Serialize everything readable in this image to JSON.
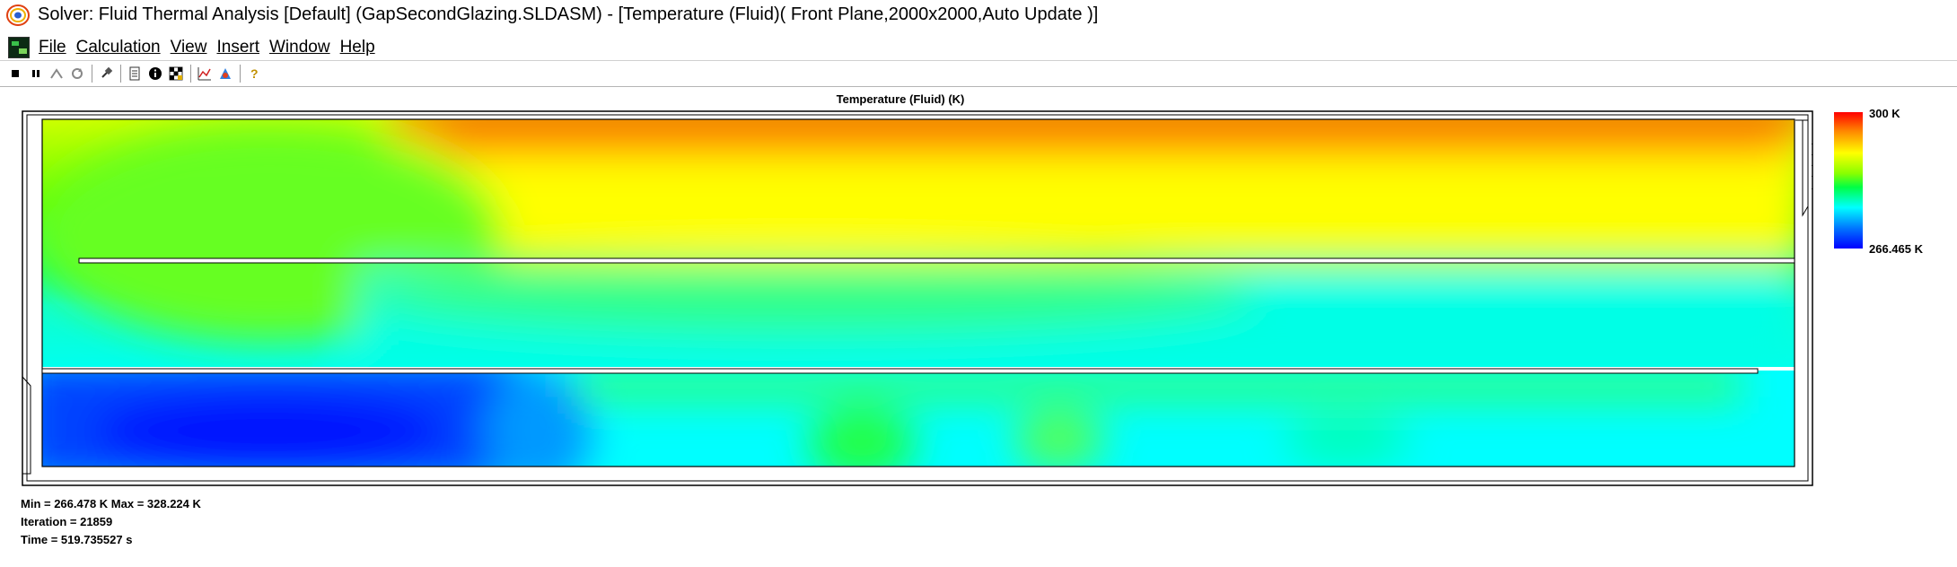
{
  "window": {
    "title": "Solver: Fluid Thermal Analysis [Default] (GapSecondGlazing.SLDASM) - [Temperature (Fluid)( Front Plane,2000x2000,Auto Update )]"
  },
  "menu": [
    {
      "label": "File"
    },
    {
      "label": "Calculation"
    },
    {
      "label": "View"
    },
    {
      "label": "Insert"
    },
    {
      "label": "Window"
    },
    {
      "label": "Help"
    }
  ],
  "toolbar": {
    "buttons": [
      "stop-icon",
      "pause-icon",
      "solve-icon",
      "refresh-icon",
      "pin-icon",
      "log-icon",
      "info-icon",
      "goals-icon",
      "plot-icon",
      "preview-icon",
      "help-icon"
    ]
  },
  "plot": {
    "title": "Temperature (Fluid) (K)"
  },
  "legend": {
    "max_label": "300 K",
    "min_label": "266.465 K",
    "colors": {
      "hot": "#ff0000",
      "warm": "#ffff00",
      "mid": "#00ff44",
      "cool": "#00ffff",
      "cold": "#0000ff"
    }
  },
  "stats": {
    "minmax": "Min = 266.478 K   Max = 328.224 K",
    "iteration": "Iteration = 21859",
    "time": "Time = 519.735527 s"
  }
}
